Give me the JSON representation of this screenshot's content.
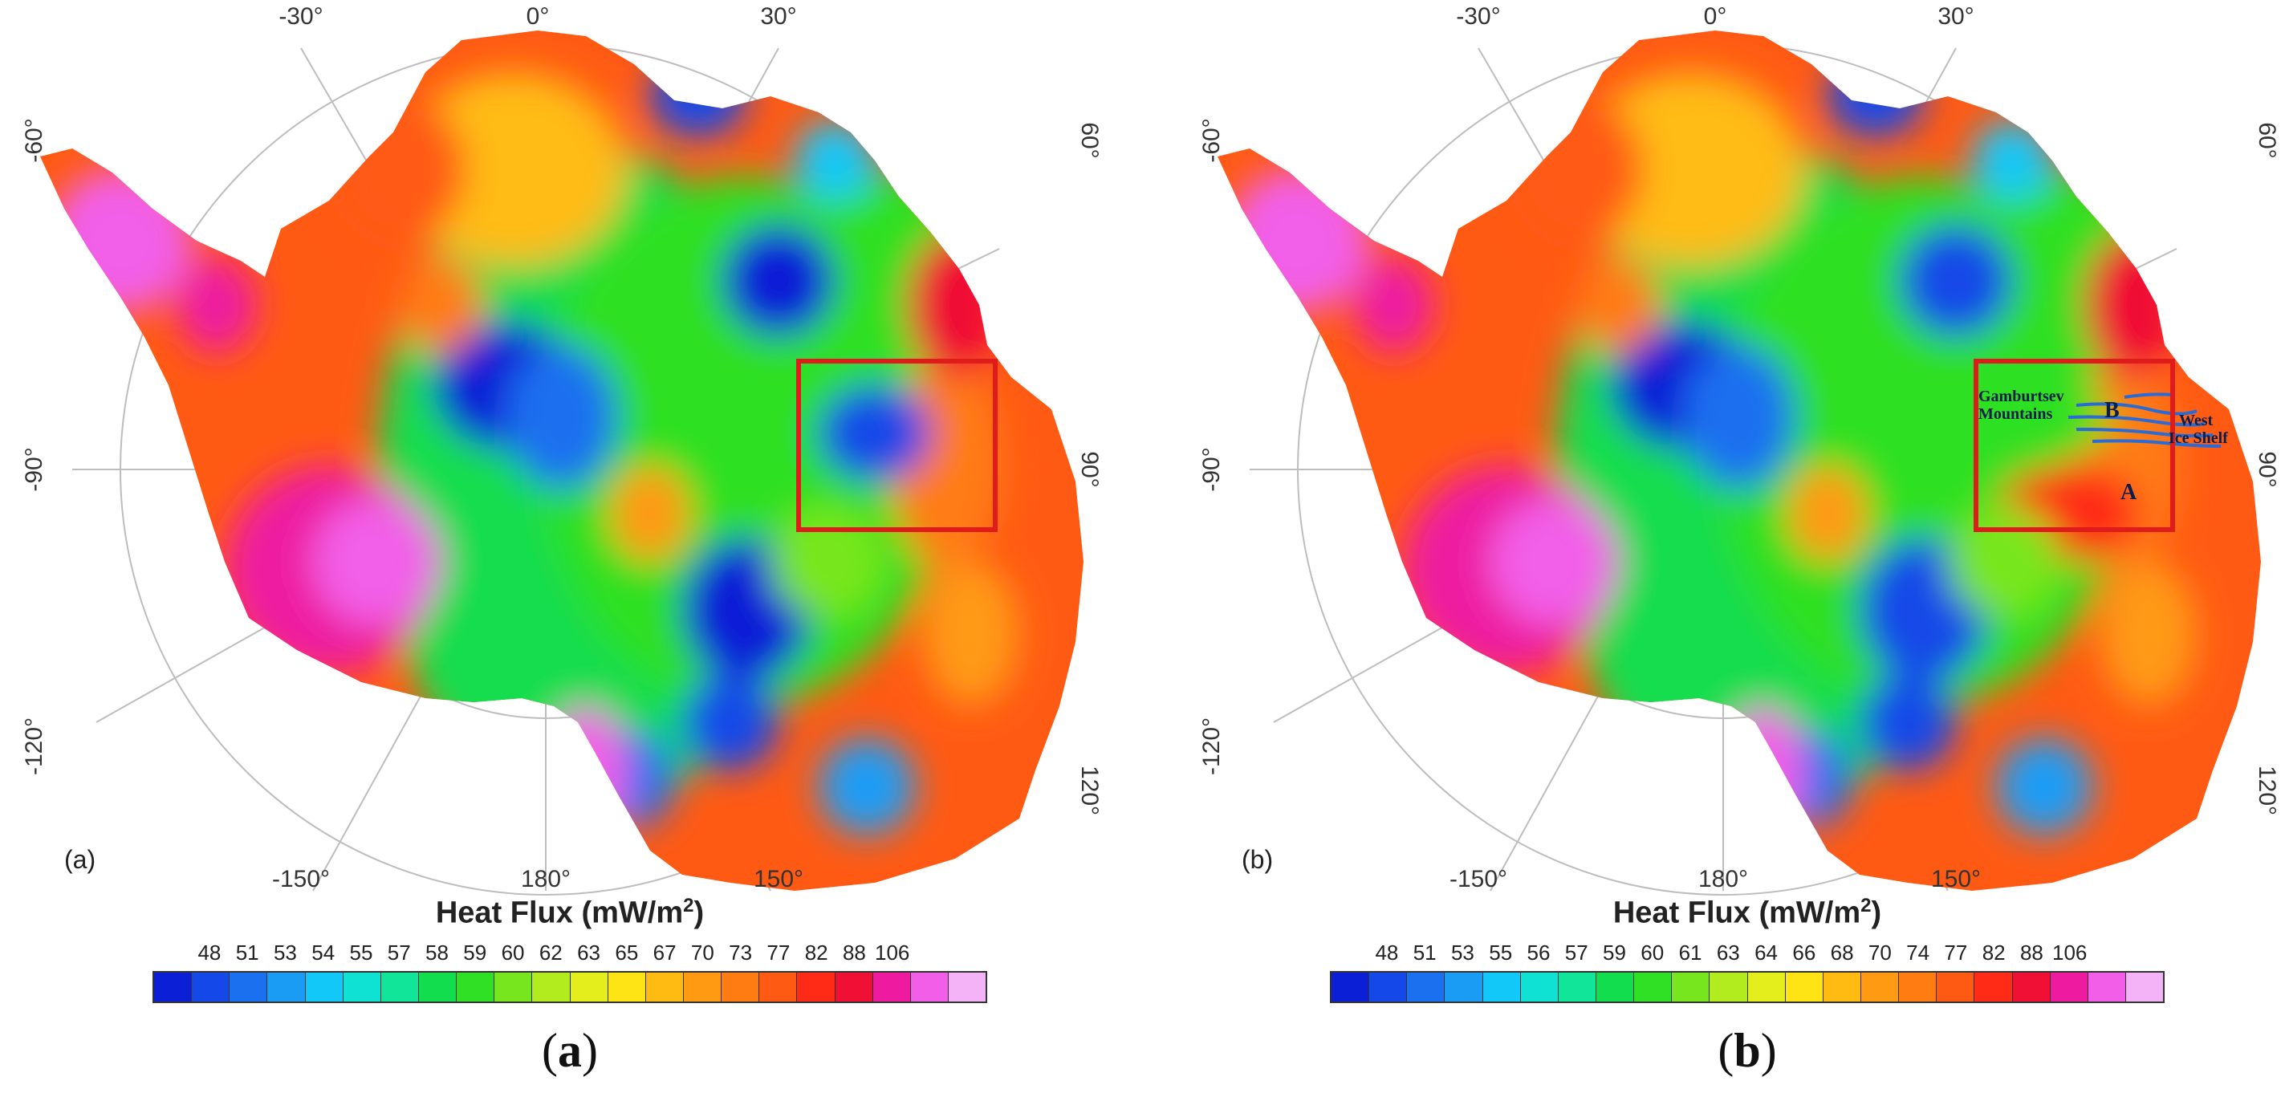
{
  "legend_title": "Heat Flux (mW/m",
  "legend_title_sup": "2",
  "legend_title_close": ")",
  "colors": [
    "#0a1fd6",
    "#1548e8",
    "#1b70f0",
    "#1a9cf5",
    "#12c8f8",
    "#0fe1d2",
    "#10e59a",
    "#12dd4e",
    "#2fe024",
    "#78e61f",
    "#b2eb1e",
    "#e3ee1c",
    "#ffe415",
    "#ffbb12",
    "#ff9a12",
    "#ff7c12",
    "#ff5a14",
    "#ff2b17",
    "#f01035",
    "#ee1aa0",
    "#f25ee8",
    "#f3b3f6"
  ],
  "panels": [
    {
      "label": "(a)",
      "caption_open": "(",
      "caption_letter": "a",
      "caption_close": ")",
      "ticks": [
        "48",
        "51",
        "53",
        "54",
        "55",
        "57",
        "58",
        "59",
        "60",
        "62",
        "63",
        "65",
        "67",
        "70",
        "73",
        "77",
        "82",
        "88",
        "106"
      ]
    },
    {
      "label": "(b)",
      "caption_open": "(",
      "caption_letter": "b",
      "caption_close": ")",
      "ticks": [
        "48",
        "51",
        "53",
        "55",
        "56",
        "57",
        "59",
        "60",
        "61",
        "63",
        "64",
        "66",
        "68",
        "70",
        "74",
        "77",
        "82",
        "88",
        "106"
      ],
      "annotations": {
        "gamburtsev": [
          "Gamburtsev",
          "Mountains"
        ],
        "west_ice_shelf": [
          "West",
          "Ice Shelf"
        ],
        "A": "A",
        "B": "B"
      }
    }
  ],
  "axis_labels": {
    "lon_top": [
      "-30°",
      "0°",
      "30°"
    ],
    "lon_left": [
      "-60°",
      "-90°",
      "-120°"
    ],
    "lon_right": [
      "60°",
      "90°",
      "120°"
    ],
    "lon_bottom": [
      "-150°",
      "180°",
      "150°"
    ]
  }
}
